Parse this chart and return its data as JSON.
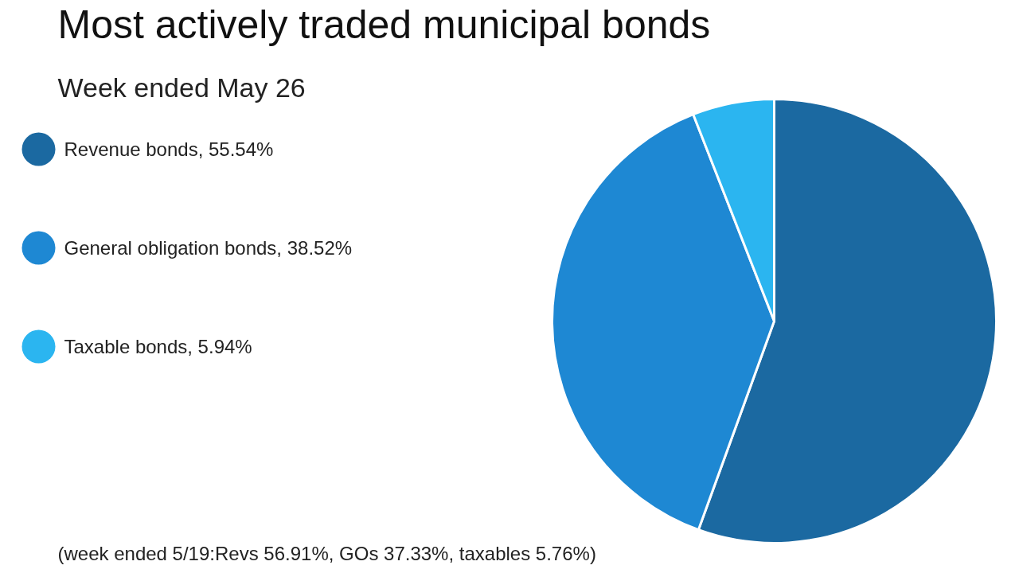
{
  "chart_data": {
    "type": "pie",
    "title": "Most actively traded municipal bonds",
    "subtitle": "Week ended May 26",
    "categories": [
      "Revenue bonds, 55.54%",
      "General obligation bonds, 38.52%",
      "Taxable bonds, 5.94%"
    ],
    "values": [
      55.54,
      38.52,
      5.94
    ],
    "colors": [
      "#1b69a1",
      "#1e88d3",
      "#2bb5f0"
    ],
    "legend": "left",
    "annotations": [
      "(week ended 5/19:Revs 56.91%, GOs 37.33%, taxables 5.76%)"
    ]
  }
}
